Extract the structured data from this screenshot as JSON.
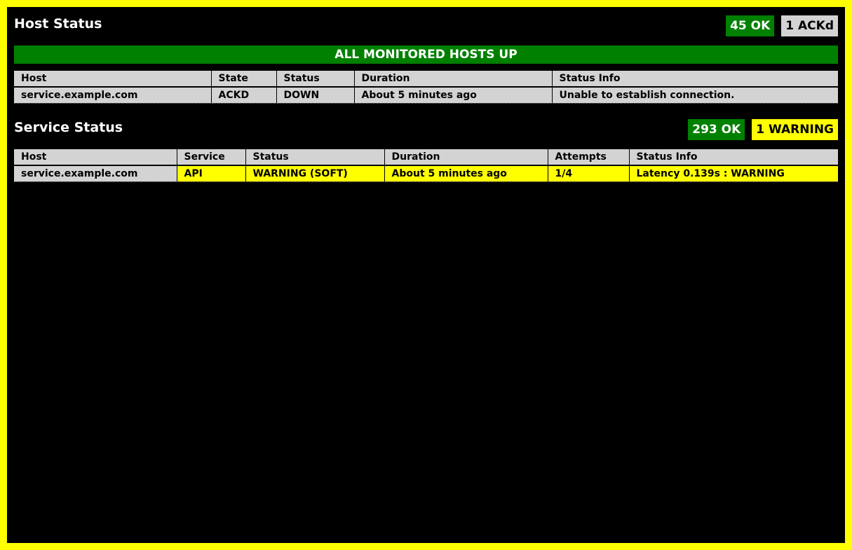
{
  "colors": {
    "frame_border": "#ffff00",
    "background": "#000000",
    "ok": "#008000",
    "ackd": "#d3d3d3",
    "warning": "#ffff00"
  },
  "host_status": {
    "title": "Host Status",
    "badges": [
      {
        "label": "45 OK",
        "kind": "ok"
      },
      {
        "label": "1 ACKd",
        "kind": "ackd"
      }
    ],
    "banner": "ALL MONITORED HOSTS UP",
    "columns": [
      "Host",
      "State",
      "Status",
      "Duration",
      "Status Info"
    ],
    "rows": [
      [
        "service.example.com",
        "ACKD",
        "DOWN",
        "About 5 minutes ago",
        "Unable to establish connection."
      ]
    ]
  },
  "service_status": {
    "title": "Service Status",
    "badges": [
      {
        "label": "293 OK",
        "kind": "ok"
      },
      {
        "label": "1 WARNING",
        "kind": "warning"
      }
    ],
    "columns": [
      "Host",
      "Service",
      "Status",
      "Duration",
      "Attempts",
      "Status Info"
    ],
    "rows": [
      [
        "service.example.com",
        "API",
        "WARNING (SOFT)",
        "About 5 minutes ago",
        "1/4",
        "Latency 0.139s : WARNING"
      ]
    ]
  }
}
